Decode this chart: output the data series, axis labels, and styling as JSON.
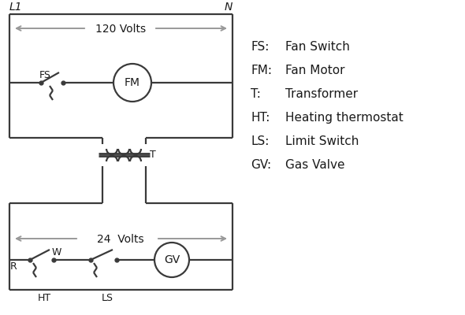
{
  "bg_color": "#ffffff",
  "line_color": "#3a3a3a",
  "gray_color": "#999999",
  "text_color": "#1a1a1a",
  "legend": [
    [
      "FS:",
      "Fan Switch"
    ],
    [
      "FM:",
      "Fan Motor"
    ],
    [
      "T:",
      "Transformer"
    ],
    [
      "HT:",
      "Heating thermostat"
    ],
    [
      "LS:",
      "Limit Switch"
    ],
    [
      "GV:",
      "Gas Valve"
    ]
  ],
  "volts120_text": "120 Volts",
  "volts24_text": "24  Volts",
  "L1_label": "L1",
  "N_label": "N",
  "FS_label": "FS",
  "FM_label": "FM",
  "T_label": "T",
  "R_label": "R",
  "W_label": "W",
  "HT_label": "HT",
  "LS_label": "LS",
  "GV_label": "GV"
}
